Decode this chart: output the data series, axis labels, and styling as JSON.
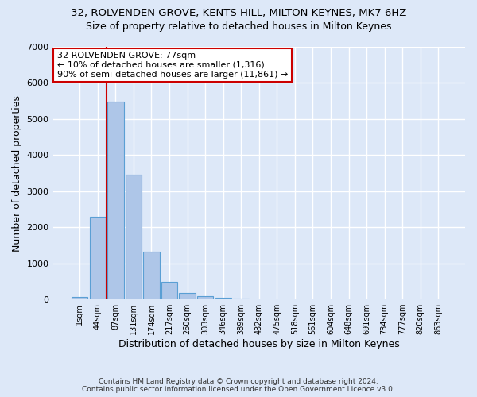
{
  "title_line1": "32, ROLVENDEN GROVE, KENTS HILL, MILTON KEYNES, MK7 6HZ",
  "title_line2": "Size of property relative to detached houses in Milton Keynes",
  "xlabel": "Distribution of detached houses by size in Milton Keynes",
  "ylabel": "Number of detached properties",
  "footer_line1": "Contains HM Land Registry data © Crown copyright and database right 2024.",
  "footer_line2": "Contains public sector information licensed under the Open Government Licence v3.0.",
  "bar_labels": [
    "1sqm",
    "44sqm",
    "87sqm",
    "131sqm",
    "174sqm",
    "217sqm",
    "260sqm",
    "303sqm",
    "346sqm",
    "389sqm",
    "432sqm",
    "475sqm",
    "518sqm",
    "561sqm",
    "604sqm",
    "648sqm",
    "691sqm",
    "734sqm",
    "777sqm",
    "820sqm",
    "863sqm"
  ],
  "bar_values": [
    75,
    2280,
    5480,
    3460,
    1320,
    480,
    170,
    90,
    55,
    30,
    0,
    0,
    0,
    0,
    0,
    0,
    0,
    0,
    0,
    0,
    0
  ],
  "bar_color": "#aec6e8",
  "bar_edge_color": "#5a9fd4",
  "background_color": "#dde8f8",
  "grid_color": "#ffffff",
  "vline_x": 1.5,
  "vline_color": "#cc0000",
  "annotation_text": "32 ROLVENDEN GROVE: 77sqm\n← 10% of detached houses are smaller (1,316)\n90% of semi-detached houses are larger (11,861) →",
  "annotation_box_color": "#ffffff",
  "annotation_edge_color": "#cc0000",
  "ylim": [
    0,
    7000
  ],
  "yticks": [
    0,
    1000,
    2000,
    3000,
    4000,
    5000,
    6000,
    7000
  ],
  "title_fontsize": 9.5,
  "subtitle_fontsize": 9,
  "xlabel_fontsize": 9,
  "ylabel_fontsize": 9,
  "annotation_fontsize": 8
}
